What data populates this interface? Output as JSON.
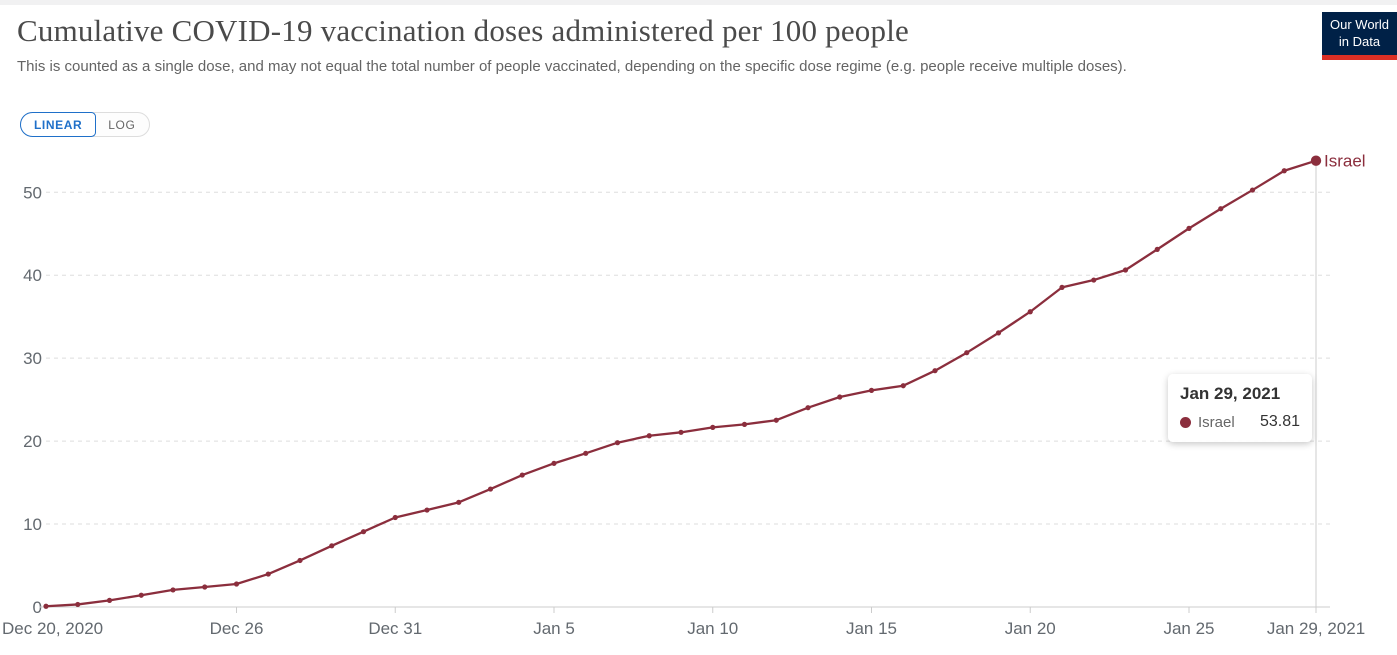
{
  "header": {
    "title": "Cumulative COVID-19 vaccination doses administered per 100 people",
    "subtitle": "This is counted as a single dose, and may not equal the total number of people vaccinated, depending on the specific dose regime (e.g. people receive multiple doses)."
  },
  "logo": {
    "line1": "Our World",
    "line2": "in Data",
    "bg_color": "#002147",
    "accent_color": "#dc2f25"
  },
  "controls": {
    "linear_label": "LINEAR",
    "log_label": "LOG",
    "active_scale": "LINEAR",
    "accent_color": "#1f70c9"
  },
  "tooltip": {
    "date": "Jan 29, 2021",
    "series": "Israel",
    "value": "53.81"
  },
  "chart_data": {
    "type": "line",
    "title": "Cumulative COVID-19 vaccination doses administered per 100 people",
    "ylabel": "",
    "xlabel": "",
    "ylim": [
      0,
      55
    ],
    "y_ticks": [
      0,
      10,
      20,
      30,
      40,
      50
    ],
    "grid": "horizontal-dashed",
    "x": [
      "Dec 20, 2020",
      "Dec 21",
      "Dec 22",
      "Dec 23",
      "Dec 24",
      "Dec 25",
      "Dec 26",
      "Dec 27",
      "Dec 28",
      "Dec 29",
      "Dec 30",
      "Dec 31",
      "Jan 1",
      "Jan 2",
      "Jan 3",
      "Jan 4",
      "Jan 5",
      "Jan 6",
      "Jan 7",
      "Jan 8",
      "Jan 9",
      "Jan 10",
      "Jan 11",
      "Jan 12",
      "Jan 13",
      "Jan 14",
      "Jan 15",
      "Jan 16",
      "Jan 17",
      "Jan 18",
      "Jan 19",
      "Jan 20",
      "Jan 21",
      "Jan 22",
      "Jan 23",
      "Jan 24",
      "Jan 25",
      "Jan 26",
      "Jan 27",
      "Jan 28",
      "Jan 29, 2021"
    ],
    "x_tick_labels": [
      "Dec 20, 2020",
      "Dec 26",
      "Dec 31",
      "Jan 5",
      "Jan 10",
      "Jan 15",
      "Jan 20",
      "Jan 25",
      "Jan 29, 2021"
    ],
    "x_tick_days": [
      0,
      6,
      11,
      16,
      21,
      26,
      31,
      36,
      40
    ],
    "series": [
      {
        "name": "Israel",
        "color": "#8b2e3d",
        "end_label": "Israel",
        "values": [
          0.09,
          0.31,
          0.8,
          1.42,
          2.06,
          2.41,
          2.77,
          3.97,
          5.61,
          7.38,
          9.08,
          10.79,
          11.69,
          12.62,
          14.22,
          15.91,
          17.32,
          18.53,
          19.81,
          20.65,
          21.06,
          21.66,
          22.02,
          22.52,
          24.03,
          25.32,
          26.12,
          26.68,
          28.49,
          30.66,
          33.05,
          35.6,
          38.54,
          39.42,
          40.63,
          43.12,
          45.65,
          48.02,
          50.27,
          52.6,
          53.81
        ]
      }
    ],
    "highlight": {
      "day_index": 40,
      "date": "Jan 29, 2021",
      "value": 53.81
    }
  }
}
